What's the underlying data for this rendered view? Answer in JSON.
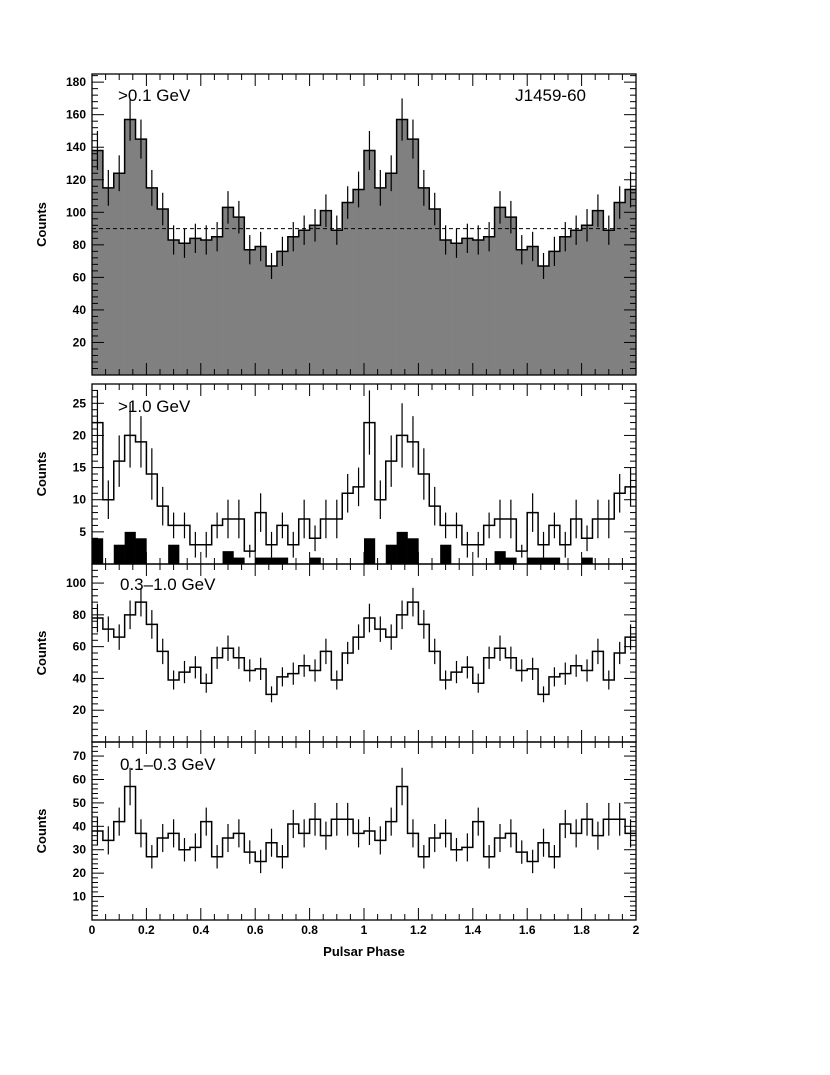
{
  "chart_data": [
    {
      "type": "histogram",
      "source": "J1459-60",
      "energy_label": ">0.1 GeV",
      "ylabel": "Counts",
      "ylim": [
        0,
        185
      ],
      "yticks": [
        20,
        40,
        60,
        80,
        100,
        120,
        140,
        160,
        180
      ],
      "xlim": [
        0,
        2
      ],
      "bins_per_cycle": 25,
      "background_level": 90,
      "values": [
        138,
        115,
        124,
        157,
        145,
        115,
        102,
        83,
        81,
        84,
        83,
        85,
        103,
        97,
        77,
        79,
        67,
        76,
        85,
        89,
        92,
        101,
        89,
        106,
        114
      ],
      "errors": [
        12,
        11,
        11,
        13,
        12,
        11,
        10,
        9,
        9,
        9,
        9,
        9,
        10,
        10,
        9,
        9,
        8,
        9,
        9,
        9,
        10,
        10,
        9,
        10,
        11
      ],
      "fill": "#808080"
    },
    {
      "type": "histogram",
      "energy_label": ">1.0 GeV",
      "ylabel": "Counts",
      "ylim": [
        0,
        28
      ],
      "yticks": [
        5,
        10,
        15,
        20,
        25
      ],
      "xlim": [
        0,
        2
      ],
      "bins_per_cycle": 25,
      "values": [
        22,
        10,
        16,
        20,
        19,
        14,
        9,
        6,
        6,
        3,
        3,
        6,
        7,
        7,
        2,
        8,
        3,
        6,
        3,
        7,
        4,
        7,
        7,
        11,
        12
      ],
      "errors": [
        5,
        3,
        4,
        5,
        4,
        4,
        3,
        2,
        2,
        2,
        2,
        2,
        3,
        3,
        1,
        3,
        2,
        2,
        2,
        3,
        2,
        3,
        3,
        3,
        3
      ],
      "filled_values": [
        4,
        0,
        3,
        5,
        4,
        0,
        0,
        3,
        0,
        0,
        0,
        0,
        2,
        1,
        0,
        1,
        1,
        1,
        0,
        0,
        1,
        0,
        0,
        0,
        0
      ],
      "fill": "#000000"
    },
    {
      "type": "histogram",
      "energy_label": "0.3–1.0 GeV",
      "ylabel": "Counts",
      "ylim": [
        0,
        112
      ],
      "yticks": [
        20,
        40,
        60,
        80,
        100
      ],
      "xlim": [
        0,
        2
      ],
      "bins_per_cycle": 25,
      "values": [
        78,
        71,
        66,
        80,
        88,
        74,
        57,
        39,
        44,
        47,
        37,
        53,
        59,
        53,
        45,
        46,
        30,
        41,
        43,
        48,
        45,
        57,
        39,
        56,
        66
      ],
      "errors": [
        9,
        8,
        8,
        9,
        9,
        9,
        8,
        6,
        7,
        7,
        6,
        7,
        8,
        7,
        7,
        7,
        5,
        6,
        7,
        7,
        7,
        8,
        6,
        7,
        8
      ]
    },
    {
      "type": "histogram",
      "energy_label": "0.1–0.3 GeV",
      "ylabel": "Counts",
      "ylim": [
        0,
        76
      ],
      "yticks": [
        10,
        20,
        30,
        40,
        50,
        60,
        70
      ],
      "xlim": [
        0,
        2
      ],
      "bins_per_cycle": 25,
      "values": [
        38,
        34,
        42,
        57,
        37,
        27,
        35,
        37,
        30,
        31,
        42,
        27,
        35,
        37,
        29,
        25,
        33,
        27,
        41,
        37,
        43,
        36,
        43,
        43,
        37
      ],
      "errors": [
        6,
        6,
        6,
        8,
        6,
        5,
        6,
        6,
        5,
        6,
        6,
        5,
        6,
        6,
        5,
        5,
        6,
        5,
        6,
        6,
        7,
        6,
        7,
        7,
        6
      ]
    }
  ],
  "x_axis": {
    "title": "Pulsar Phase",
    "tick_labels": [
      "0",
      "0.2",
      "0.4",
      "0.6",
      "0.8",
      "1",
      "1.2",
      "1.4",
      "1.6",
      "1.8",
      "2"
    ]
  }
}
